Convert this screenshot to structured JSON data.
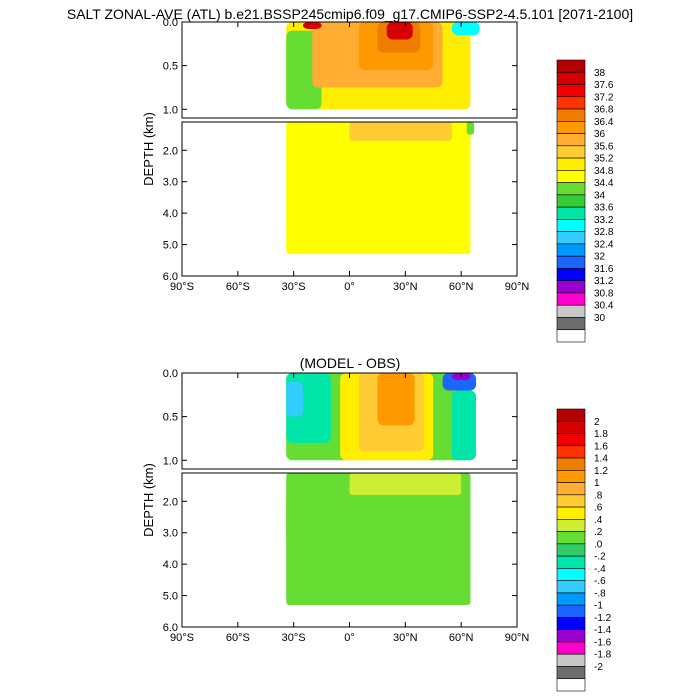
{
  "figure_title": "SALT ZONAL-AVE (ATL) b.e21.BSSP245cmip6.f09_g17.CMIP6-SSP2-4.5.101 [2071-2100]",
  "chart_data": [
    {
      "type": "heatmap",
      "title": "",
      "xlabel": "",
      "ylabel": "DEPTH (km)",
      "x_ticks": [
        "90°S",
        "60°S",
        "30°S",
        "0°",
        "30°N",
        "60°N",
        "90°N"
      ],
      "y_ticks_upper": [
        "0.0",
        "0.5",
        "1.0"
      ],
      "y_ticks_lower": [
        "2.0",
        "3.0",
        "4.0",
        "5.0",
        "6.0"
      ],
      "xlim": [
        -90,
        90
      ],
      "ylim_km": [
        6.0,
        0.0
      ],
      "colorbar_labels": [
        "38",
        "37.6",
        "37.2",
        "36.8",
        "36.4",
        "36",
        "35.6",
        "35.2",
        "34.8",
        "34.4",
        "34",
        "33.6",
        "33.2",
        "32.8",
        "32.4",
        "32",
        "31.6",
        "31.2",
        "30.8",
        "30.4",
        "30"
      ],
      "colorbar_colors": [
        "#b30000",
        "#d60000",
        "#f20000",
        "#ff3300",
        "#f07c00",
        "#ff9900",
        "#ffad33",
        "#ffcc33",
        "#ffee00",
        "#ffff00",
        "#66dd33",
        "#33cc33",
        "#00e6a8",
        "#00ffff",
        "#33ccff",
        "#0099ff",
        "#1a66ff",
        "#0000ff",
        "#9900cc",
        "#ff00cc",
        "#c8c8c8",
        "#6e6e6e",
        "#ffffff"
      ]
    },
    {
      "type": "heatmap",
      "title": "(MODEL - OBS)",
      "xlabel": "",
      "ylabel": "DEPTH (km)",
      "x_ticks": [
        "90°S",
        "60°S",
        "30°S",
        "0°",
        "30°N",
        "60°N",
        "90°N"
      ],
      "y_ticks_upper": [
        "0.0",
        "0.5",
        "1.0"
      ],
      "y_ticks_lower": [
        "2.0",
        "3.0",
        "4.0",
        "5.0",
        "6.0"
      ],
      "xlim": [
        -90,
        90
      ],
      "ylim_km": [
        6.0,
        0.0
      ],
      "colorbar_labels": [
        "2",
        "1.8",
        "1.6",
        "1.4",
        "1.2",
        "1",
        ".8",
        ".6",
        ".4",
        ".2",
        ".0",
        "-.2",
        "-.4",
        "-.6",
        "-.8",
        "-1",
        "-1.2",
        "-1.4",
        "-1.6",
        "-1.8",
        "-2"
      ],
      "colorbar_colors": [
        "#b30000",
        "#d60000",
        "#f20000",
        "#ff3300",
        "#f07c00",
        "#ff9900",
        "#ffad33",
        "#ffcc33",
        "#ffee00",
        "#ccee33",
        "#66dd33",
        "#33cc66",
        "#00e6a8",
        "#00ffff",
        "#33ccff",
        "#0099ff",
        "#1a66ff",
        "#0000ff",
        "#9900cc",
        "#ff00cc",
        "#c8c8c8",
        "#6e6e6e",
        "#ffffff"
      ]
    }
  ]
}
